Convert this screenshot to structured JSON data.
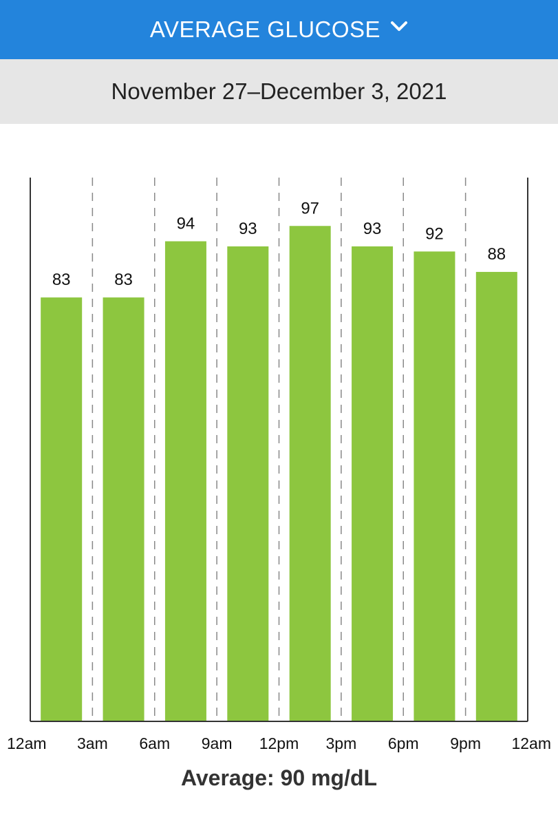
{
  "header": {
    "title": "AVERAGE GLUCOSE",
    "chevron_icon": "chevron-down-icon"
  },
  "date_range": "November 27–December 3, 2021",
  "average": {
    "label": "Average:",
    "value": "90",
    "unit": "mg/dL"
  },
  "colors": {
    "header_bg": "#2384dc",
    "bar": "#8dc63f",
    "date_bar_bg": "#e6e6e6"
  },
  "chart_data": {
    "type": "bar",
    "title": "",
    "xlabel": "",
    "ylabel": "",
    "x_ticks": [
      "12am",
      "3am",
      "6am",
      "9am",
      "12pm",
      "3pm",
      "6pm",
      "9pm",
      "12am"
    ],
    "categories": [
      "12am–3am",
      "3am–6am",
      "6am–9am",
      "9am–12pm",
      "12pm–3pm",
      "3pm–6pm",
      "6pm–9pm",
      "9pm–12am"
    ],
    "values": [
      83,
      83,
      94,
      93,
      97,
      93,
      92,
      88
    ],
    "data_labels": [
      "83",
      "83",
      "94",
      "93",
      "97",
      "93",
      "92",
      "88"
    ],
    "ylim": [
      0,
      100
    ],
    "grid": "vertical dashed lines at 3-hour boundaries",
    "legend": "none"
  }
}
